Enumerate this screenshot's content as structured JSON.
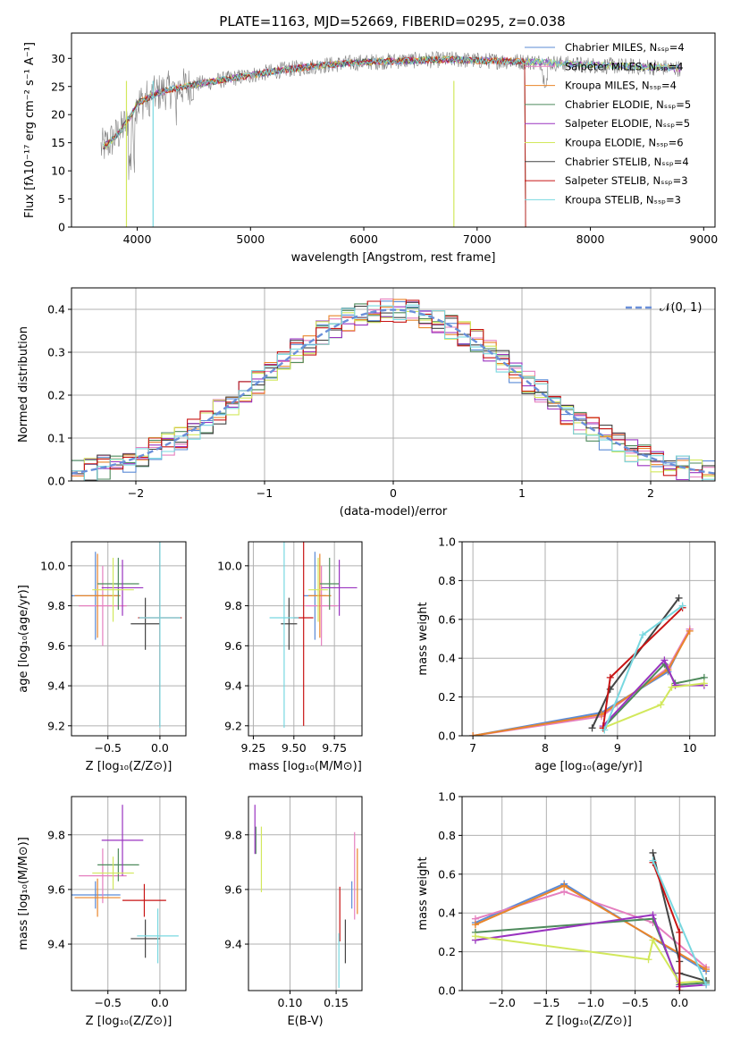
{
  "colors": {
    "Chabrier MILES": "#5b8bd6",
    "Salpeter MILES": "#e57fbf",
    "Kroupa MILES": "#e9852a",
    "Chabrier ELODIE": "#4e8a5c",
    "Salpeter ELODIE": "#9a33c0",
    "Kroupa ELODIE": "#d2e85c",
    "Chabrier STELIB": "#444444",
    "Salpeter STELIB": "#c81414",
    "Kroupa STELIB": "#78d8e0",
    "gaussian": "#6a8fd9",
    "grid": "#b0b0b0",
    "spectrum": "#808080"
  },
  "chart_data": [
    {
      "id": "spectrum",
      "type": "line",
      "title": "PLATE=1163, MJD=52669, FIBERID=0295, z=0.038",
      "xlabel": "wavelength [Angstrom, rest frame]",
      "ylabel": "Flux [fλ10⁻¹⁷ erg cm⁻² s⁻¹ A⁻¹]",
      "xlim": [
        3420,
        9100
      ],
      "ylim": [
        0,
        34.5
      ],
      "xticks": [
        "4000",
        "5000",
        "6000",
        "7000",
        "8000",
        "9000"
      ],
      "yticks": [
        "0",
        "5",
        "10",
        "15",
        "20",
        "25",
        "30"
      ],
      "legend": [
        "Chabrier MILES, Nₛₛₚ=4",
        "Salpeter MILES, Nₛₛₚ=4",
        "Kroupa MILES, Nₛₛₚ=4",
        "Chabrier ELODIE, Nₛₛₚ=5",
        "Salpeter ELODIE, Nₛₛₚ=5",
        "Kroupa ELODIE, Nₛₛₚ=6",
        "Chabrier STELIB, Nₛₛₚ=4",
        "Salpeter STELIB, Nₛₛₚ=3",
        "Kroupa STELIB, Nₛₛₚ=3"
      ],
      "legend_location": "right",
      "continuum_x": [
        3680,
        3750,
        3850,
        3950,
        4000,
        4100,
        4200,
        4300,
        4500,
        4700,
        5000,
        5300,
        5600,
        5900,
        6200,
        6500,
        6800,
        7000,
        7300,
        7600,
        7800,
        8000,
        8300,
        8600,
        8800
      ],
      "continuum_y": [
        14,
        15,
        17,
        20,
        22,
        23,
        24,
        24.5,
        25.3,
        26,
        27,
        28,
        28.7,
        29.2,
        29.5,
        29.7,
        29.8,
        29.6,
        29.5,
        29.3,
        29,
        28.8,
        28.6,
        28.4,
        28.2
      ]
    },
    {
      "id": "residuals",
      "type": "line",
      "xlabel": "(data-model)/error",
      "ylabel": "Normed distribution",
      "xlim": [
        -2.5,
        2.5
      ],
      "ylim": [
        0,
        0.45
      ],
      "xticks": [
        "−2",
        "−1",
        "0",
        "1",
        "2"
      ],
      "yticks": [
        "0.0",
        "0.1",
        "0.2",
        "0.3",
        "0.4"
      ],
      "legend": [
        "𝒩(0, 1)"
      ],
      "bin_width": 0.1
    },
    {
      "id": "age-vs-Z",
      "type": "scatter",
      "xlabel": "Z [log₁₀(Z/Z⊙)]",
      "ylabel": "age  [log₁₀(age/yr)]",
      "xlim": [
        -0.85,
        0.25
      ],
      "ylim": [
        9.15,
        10.12
      ],
      "xticks": [
        "−0.5",
        "0.0"
      ],
      "yticks": [
        "9.2",
        "9.4",
        "9.6",
        "9.8",
        "10.0"
      ],
      "points": [
        {
          "series": "Chabrier MILES",
          "x": -0.62,
          "y": 9.85,
          "xerr": 0.24,
          "yerr": 0.22
        },
        {
          "series": "Salpeter MILES",
          "x": -0.55,
          "y": 9.8,
          "xerr": 0.23,
          "yerr": 0.2
        },
        {
          "series": "Kroupa MILES",
          "x": -0.6,
          "y": 9.85,
          "xerr": 0.22,
          "yerr": 0.21
        },
        {
          "series": "Chabrier ELODIE",
          "x": -0.4,
          "y": 9.91,
          "xerr": 0.2,
          "yerr": 0.13
        },
        {
          "series": "Salpeter ELODIE",
          "x": -0.36,
          "y": 9.89,
          "xerr": 0.2,
          "yerr": 0.14
        },
        {
          "series": "Kroupa ELODIE",
          "x": -0.45,
          "y": 9.88,
          "xerr": 0.2,
          "yerr": 0.16
        },
        {
          "series": "Chabrier STELIB",
          "x": -0.14,
          "y": 9.71,
          "xerr": 0.14,
          "yerr": 0.13
        },
        {
          "series": "Salpeter STELIB",
          "x": 0.0,
          "y": 9.74,
          "xerr": 0.21,
          "yerr": 0.54
        },
        {
          "series": "Kroupa STELIB",
          "x": 0.0,
          "y": 9.74,
          "xerr": 0.2,
          "yerr": 0.55
        }
      ]
    },
    {
      "id": "age-vs-mass",
      "type": "scatter",
      "xlabel": "mass [log₁₀(M/M⊙)]",
      "ylabel": "",
      "xlim": [
        9.22,
        9.92
      ],
      "ylim": [
        9.15,
        10.12
      ],
      "xticks": [
        "9.25",
        "9.50",
        "9.75"
      ],
      "yticks": [
        "9.2",
        "9.4",
        "9.6",
        "9.8",
        "10.0"
      ],
      "points": [
        {
          "series": "Chabrier MILES",
          "x": 9.63,
          "y": 9.85,
          "xerr": 0.07,
          "yerr": 0.22
        },
        {
          "series": "Salpeter MILES",
          "x": 9.67,
          "y": 9.8,
          "xerr": 0.1,
          "yerr": 0.2
        },
        {
          "series": "Kroupa MILES",
          "x": 9.66,
          "y": 9.85,
          "xerr": 0.07,
          "yerr": 0.21
        },
        {
          "series": "Chabrier ELODIE",
          "x": 9.72,
          "y": 9.91,
          "xerr": 0.06,
          "yerr": 0.13
        },
        {
          "series": "Salpeter ELODIE",
          "x": 9.78,
          "y": 9.89,
          "xerr": 0.11,
          "yerr": 0.14
        },
        {
          "series": "Kroupa ELODIE",
          "x": 9.65,
          "y": 9.88,
          "xerr": 0.06,
          "yerr": 0.16
        },
        {
          "series": "Chabrier STELIB",
          "x": 9.47,
          "y": 9.71,
          "xerr": 0.05,
          "yerr": 0.13
        },
        {
          "series": "Salpeter STELIB",
          "x": 9.56,
          "y": 9.74,
          "xerr": 0.06,
          "yerr": 0.54
        },
        {
          "series": "Kroupa STELIB",
          "x": 9.44,
          "y": 9.74,
          "xerr": 0.09,
          "yerr": 0.55
        }
      ]
    },
    {
      "id": "massweight-vs-age",
      "type": "line",
      "xlabel": "age  [log₁₀(age/yr)]",
      "ylabel": "mass weight",
      "xlim": [
        6.85,
        10.35
      ],
      "ylim": [
        0,
        1.0
      ],
      "xticks": [
        "7",
        "8",
        "9",
        "10"
      ],
      "yticks": [
        "0.0",
        "0.2",
        "0.4",
        "0.6",
        "0.8",
        "1.0"
      ],
      "series": [
        {
          "name": "Chabrier MILES",
          "x": [
            7.0,
            8.78,
            9.7,
            10.0
          ],
          "y": [
            0.0,
            0.12,
            0.33,
            0.55
          ]
        },
        {
          "name": "Salpeter MILES",
          "x": [
            7.0,
            8.78,
            9.7,
            10.0
          ],
          "y": [
            0.0,
            0.1,
            0.35,
            0.55
          ]
        },
        {
          "name": "Kroupa MILES",
          "x": [
            7.0,
            8.78,
            9.7,
            10.0
          ],
          "y": [
            0.0,
            0.11,
            0.34,
            0.54
          ]
        },
        {
          "name": "Chabrier ELODIE",
          "x": [
            8.8,
            9.65,
            9.8,
            10.2
          ],
          "y": [
            0.04,
            0.37,
            0.27,
            0.3
          ]
        },
        {
          "name": "Salpeter ELODIE",
          "x": [
            8.8,
            9.65,
            9.8,
            10.2
          ],
          "y": [
            0.05,
            0.39,
            0.26,
            0.26
          ]
        },
        {
          "name": "Kroupa ELODIE",
          "x": [
            8.8,
            9.6,
            9.75,
            10.2
          ],
          "y": [
            0.04,
            0.16,
            0.25,
            0.27
          ]
        },
        {
          "name": "Chabrier STELIB",
          "x": [
            8.65,
            8.9,
            9.85
          ],
          "y": [
            0.04,
            0.24,
            0.71
          ]
        },
        {
          "name": "Salpeter STELIB",
          "x": [
            8.8,
            8.9,
            9.9
          ],
          "y": [
            0.04,
            0.3,
            0.66
          ]
        },
        {
          "name": "Kroupa STELIB",
          "x": [
            8.82,
            9.35,
            9.9
          ],
          "y": [
            0.03,
            0.52,
            0.67
          ]
        }
      ]
    },
    {
      "id": "mass-vs-Z",
      "type": "scatter",
      "xlabel": "Z [log₁₀(Z/Z⊙)]",
      "ylabel": "mass [log₁₀(M/M⊙)]",
      "xlim": [
        -0.85,
        0.25
      ],
      "ylim": [
        9.23,
        9.94
      ],
      "xticks": [
        "−0.5",
        "0.0"
      ],
      "yticks": [
        "9.4",
        "9.6",
        "9.8"
      ],
      "points": [
        {
          "series": "Chabrier MILES",
          "x": -0.62,
          "y": 9.58,
          "xerr": 0.24,
          "yerr": 0.05
        },
        {
          "series": "Salpeter MILES",
          "x": -0.55,
          "y": 9.65,
          "xerr": 0.23,
          "yerr": 0.1
        },
        {
          "series": "Kroupa MILES",
          "x": -0.6,
          "y": 9.57,
          "xerr": 0.22,
          "yerr": 0.07
        },
        {
          "series": "Chabrier ELODIE",
          "x": -0.4,
          "y": 9.69,
          "xerr": 0.2,
          "yerr": 0.06
        },
        {
          "series": "Salpeter ELODIE",
          "x": -0.36,
          "y": 9.78,
          "xerr": 0.2,
          "yerr": 0.13
        },
        {
          "series": "Kroupa ELODIE",
          "x": -0.45,
          "y": 9.66,
          "xerr": 0.2,
          "yerr": 0.06
        },
        {
          "series": "Chabrier STELIB",
          "x": -0.14,
          "y": 9.42,
          "xerr": 0.14,
          "yerr": 0.07
        },
        {
          "series": "Salpeter STELIB",
          "x": -0.15,
          "y": 9.56,
          "xerr": 0.21,
          "yerr": 0.06
        },
        {
          "series": "Kroupa STELIB",
          "x": -0.02,
          "y": 9.43,
          "xerr": 0.2,
          "yerr": 0.1
        }
      ]
    },
    {
      "id": "mass-vs-ebv",
      "type": "scatter",
      "xlabel": "E(B-V)",
      "ylabel": "",
      "xlim": [
        0.055,
        0.178
      ],
      "ylim": [
        9.23,
        9.94
      ],
      "xticks": [
        "0.10",
        "0.15"
      ],
      "yticks": [
        "9.4",
        "9.6",
        "9.8"
      ],
      "points": [
        {
          "series": "Chabrier MILES",
          "x": 0.167,
          "y": 9.58,
          "xerr": 0.0,
          "yerr": 0.05
        },
        {
          "series": "Salpeter MILES",
          "x": 0.17,
          "y": 9.65,
          "xerr": 0.0,
          "yerr": 0.16
        },
        {
          "series": "Kroupa MILES",
          "x": 0.173,
          "y": 9.63,
          "xerr": 0.0,
          "yerr": 0.12
        },
        {
          "series": "Chabrier ELODIE",
          "x": 0.063,
          "y": 9.78,
          "xerr": 0.0,
          "yerr": 0.05
        },
        {
          "series": "Salpeter ELODIE",
          "x": 0.062,
          "y": 9.82,
          "xerr": 0.0,
          "yerr": 0.09
        },
        {
          "series": "Kroupa ELODIE",
          "x": 0.069,
          "y": 9.71,
          "xerr": 0.0,
          "yerr": 0.12
        },
        {
          "series": "Chabrier STELIB",
          "x": 0.16,
          "y": 9.41,
          "xerr": 0.0,
          "yerr": 0.08
        },
        {
          "series": "Salpeter STELIB",
          "x": 0.154,
          "y": 9.51,
          "xerr": 0.0,
          "yerr": 0.1
        },
        {
          "series": "Kroupa STELIB",
          "x": 0.153,
          "y": 9.34,
          "xerr": 0.0,
          "yerr": 0.1
        }
      ]
    },
    {
      "id": "massweight-vs-Z",
      "type": "line",
      "xlabel": "Z [log₁₀(Z/Z⊙)]",
      "ylabel": "mass weight",
      "xlim": [
        -2.45,
        0.4
      ],
      "ylim": [
        0,
        1.0
      ],
      "xticks": [
        "−2.0",
        "−1.5",
        "−1.0",
        "−0.5",
        "0.0"
      ],
      "yticks": [
        "0.0",
        "0.2",
        "0.4",
        "0.6",
        "0.8",
        "1.0"
      ],
      "series": [
        {
          "name": "Chabrier MILES",
          "x": [
            -2.3,
            -1.3,
            0.3
          ],
          "y": [
            0.35,
            0.55,
            0.1
          ]
        },
        {
          "name": "Salpeter MILES",
          "x": [
            -2.3,
            -1.3,
            -0.3,
            0.3
          ],
          "y": [
            0.37,
            0.51,
            0.35,
            0.12
          ]
        },
        {
          "name": "Kroupa MILES",
          "x": [
            -2.3,
            -1.3,
            0.3
          ],
          "y": [
            0.34,
            0.54,
            0.11
          ]
        },
        {
          "name": "Chabrier ELODIE",
          "x": [
            -2.3,
            -0.3,
            0.0,
            0.3
          ],
          "y": [
            0.3,
            0.37,
            0.03,
            0.04
          ]
        },
        {
          "name": "Salpeter ELODIE",
          "x": [
            -2.3,
            -0.3,
            0.0,
            0.3
          ],
          "y": [
            0.26,
            0.39,
            0.02,
            0.03
          ]
        },
        {
          "name": "Kroupa ELODIE",
          "x": [
            -2.3,
            -0.35,
            -0.3,
            0.0,
            0.3
          ],
          "y": [
            0.28,
            0.16,
            0.26,
            0.04,
            0.05
          ]
        },
        {
          "name": "Chabrier STELIB",
          "x": [
            -0.3,
            0.0,
            0.0,
            0.3
          ],
          "y": [
            0.71,
            0.15,
            0.09,
            0.05
          ]
        },
        {
          "name": "Salpeter STELIB",
          "x": [
            -0.3,
            0.0,
            0.0
          ],
          "y": [
            0.66,
            0.3,
            0.0
          ]
        },
        {
          "name": "Kroupa STELIB",
          "x": [
            -0.3,
            0.3
          ],
          "y": [
            0.67,
            0.03
          ]
        }
      ]
    }
  ]
}
